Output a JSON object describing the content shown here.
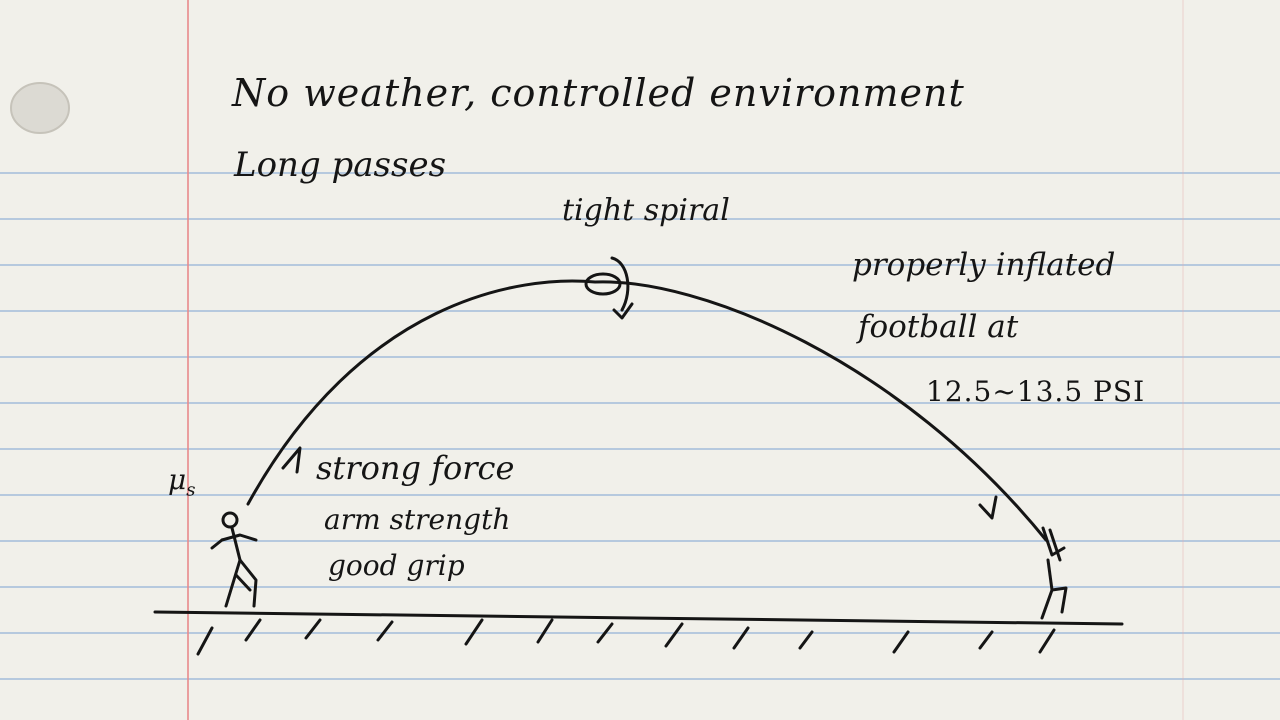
{
  "notes": {
    "line1": "No weather, controlled environment",
    "line2": "Long passes"
  },
  "ball": {
    "label": "tight spiral"
  },
  "football_note": {
    "line1": "properly inflated",
    "line2": "football at",
    "line3": "12.5~13.5 PSI"
  },
  "thrower": {
    "symbol": "μ",
    "symbol_sub": "s",
    "force_label": "strong force",
    "arm_label": "arm strength",
    "grip_label": "good grip"
  },
  "colors": {
    "paper": "#f1f0ea",
    "ruled_line": "#8fb0d6",
    "margin_line": "#e88a8a",
    "ink": "#151515"
  }
}
